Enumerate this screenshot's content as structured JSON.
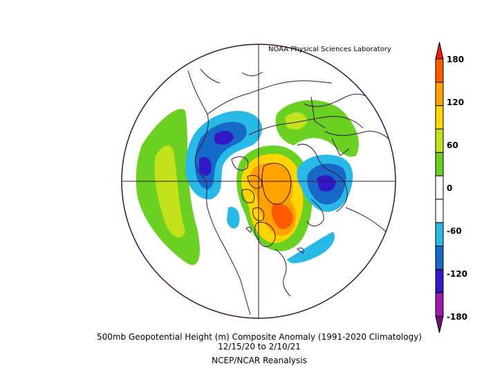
{
  "credit": "NOAA Physical Sciences Laboratory",
  "title": "500mb Geopotential Height (m) Composite Anomaly (1991-2020 Climatology)",
  "dates": "12/15/20  to 2/10/21",
  "source": "NCEP/NCAR Reanalysis",
  "colorbar": {
    "ticks": [
      "180",
      "120",
      "60",
      "0",
      "-60",
      "-120",
      "-180"
    ],
    "colors": [
      "#6a0f74",
      "#a01aa8",
      "#3218c4",
      "#1769c8",
      "#29b9e6",
      "#ffffff",
      "#ffffff",
      "#6ad021",
      "#c4e21c",
      "#ffd500",
      "#ffa200",
      "#ff5a00",
      "#e81f00"
    ]
  },
  "palette": {
    "outline": "#3a1042",
    "green": "#6ad021",
    "lime": "#c4e21c",
    "yellow": "#ffd500",
    "orange": "#ffa200",
    "red_orange": "#ff5a00",
    "light_blue": "#29b9e6",
    "blue": "#1769c8",
    "indigo": "#3218c4"
  }
}
